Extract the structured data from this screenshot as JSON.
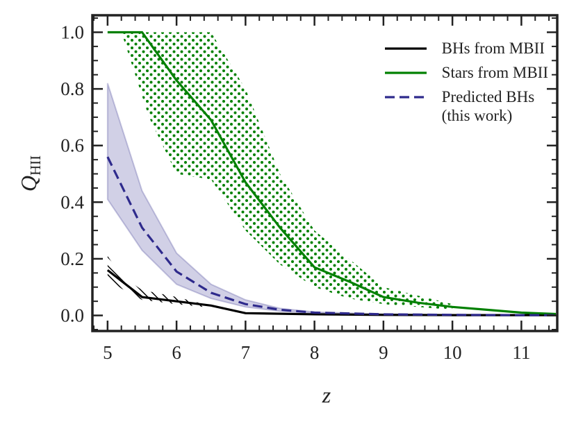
{
  "chart_data": {
    "type": "line",
    "xlabel": "z",
    "ylabel": {
      "main": "Q",
      "sub": "HII"
    },
    "xlim": [
      4.78,
      11.52
    ],
    "ylim": [
      -0.055,
      1.06
    ],
    "xticks": [
      5,
      6,
      7,
      8,
      9,
      10,
      11
    ],
    "yticks": [
      {
        "value": 0,
        "label": "0.0"
      },
      0.2,
      0.4,
      0.6,
      0.8,
      {
        "value": 1,
        "label": "1.0"
      }
    ],
    "minor_ticks": {
      "x": 0.2,
      "y": 0.05
    },
    "ticks_mirror": true,
    "legend": "upper right",
    "series": [
      {
        "name": "BHs from MBII",
        "color": "#000000",
        "dash": false,
        "x": [
          5,
          5.5,
          6,
          6.5,
          7,
          8,
          9,
          10,
          11,
          11.5
        ],
        "values": [
          0.16,
          0.065,
          0.05,
          0.035,
          0.008,
          0.004,
          0.002,
          0.001,
          0.001,
          0.001
        ],
        "band": {
          "x": [
            5,
            5.2,
            5.5,
            6,
            6.4
          ],
          "upper": [
            0.21,
            0.14,
            0.09,
            0.065,
            0.04
          ],
          "lower": [
            0.13,
            0.095,
            0.055,
            0.04,
            0.03
          ],
          "hatch": "lines"
        }
      },
      {
        "name": "Stars from MBII",
        "color": "#008000",
        "dash": false,
        "x": [
          5,
          5.5,
          6,
          6.5,
          7,
          7.5,
          8,
          8.5,
          9,
          9.5,
          10,
          10.5,
          11,
          11.5
        ],
        "values": [
          1.0,
          1.0,
          0.83,
          0.69,
          0.47,
          0.31,
          0.17,
          0.12,
          0.065,
          0.045,
          0.03,
          0.02,
          0.01,
          0.005
        ],
        "band": {
          "x": [
            5.2,
            5.6,
            6,
            6.5,
            7,
            7.5,
            8,
            8.5,
            9,
            10
          ],
          "upper": [
            1.0,
            1.0,
            1.0,
            1.0,
            0.8,
            0.5,
            0.3,
            0.2,
            0.1,
            0.04
          ],
          "lower": [
            1.0,
            0.7,
            0.5,
            0.48,
            0.3,
            0.18,
            0.1,
            0.06,
            0.04,
            0.02
          ],
          "hatch": "dots"
        }
      },
      {
        "name": "Predicted BHs\n(this work)",
        "color": "#2e2a8c",
        "dash": true,
        "x": [
          5,
          5.5,
          6,
          6.5,
          7,
          7.5,
          8,
          9,
          10,
          11,
          11.5
        ],
        "values": [
          0.56,
          0.31,
          0.155,
          0.08,
          0.04,
          0.02,
          0.01,
          0.004,
          0.002,
          0.001,
          0.001
        ],
        "band": {
          "x": [
            5,
            5.5,
            6,
            6.5,
            7,
            7.5,
            8,
            9,
            10,
            11,
            11.5
          ],
          "upper": [
            0.82,
            0.44,
            0.22,
            0.11,
            0.055,
            0.025,
            0.012,
            0.005,
            0.003,
            0.002,
            0.002
          ],
          "lower": [
            0.41,
            0.23,
            0.11,
            0.06,
            0.03,
            0.015,
            0.008,
            0.003,
            0.001,
            0.001,
            0.001
          ],
          "hatch": "fill"
        }
      }
    ]
  }
}
